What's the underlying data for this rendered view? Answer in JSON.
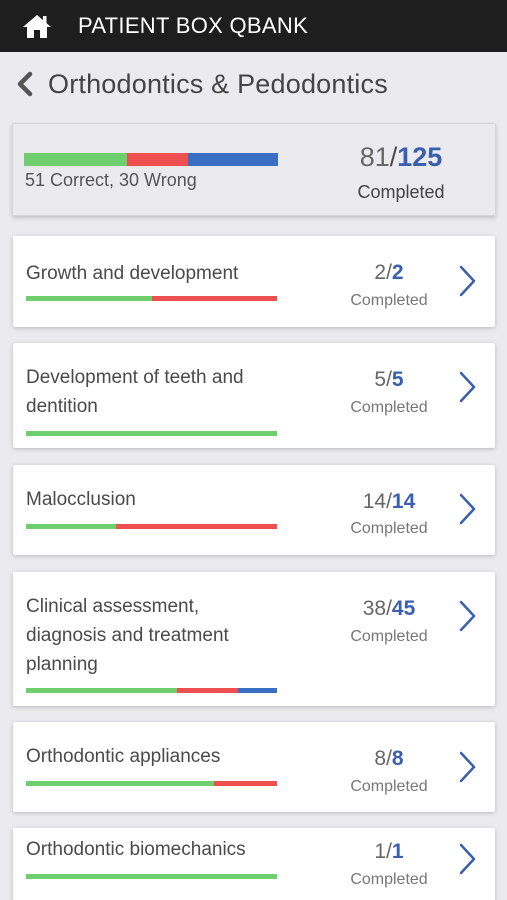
{
  "app": {
    "title": "PATIENT BOX QBANK"
  },
  "subject": {
    "title": "Orthodontics & Pedodontics"
  },
  "colors": {
    "correct": "#6fcf6f",
    "wrong": "#ee5050",
    "remaining": "#3a6ec4"
  },
  "summary": {
    "completed": "81",
    "total": "125",
    "correct": 51,
    "wrong": 30,
    "stats_label": "51 Correct, 30 Wrong",
    "completed_label": "Completed"
  },
  "topics": [
    {
      "name": "Growth and development",
      "completed": "2",
      "total": "2",
      "correct_fraction": 0.5,
      "wrong_fraction": 0.5,
      "completed_label": "Completed"
    },
    {
      "name": "Development of teeth and dentition",
      "completed": "5",
      "total": "5",
      "correct_fraction": 1.0,
      "wrong_fraction": 0.0,
      "completed_label": "Completed"
    },
    {
      "name": "Malocclusion",
      "completed": "14",
      "total": "14",
      "correct_fraction": 0.36,
      "wrong_fraction": 0.64,
      "completed_label": "Completed"
    },
    {
      "name": "Clinical assessment, diagnosis and treatment planning",
      "completed": "38",
      "total": "45",
      "correct_fraction": 0.6,
      "wrong_fraction": 0.245,
      "completed_label": "Completed"
    },
    {
      "name": "Orthodontic appliances",
      "completed": "8",
      "total": "8",
      "correct_fraction": 0.75,
      "wrong_fraction": 0.25,
      "completed_label": "Completed"
    },
    {
      "name": "Orthodontic biomechanics",
      "completed": "1",
      "total": "1",
      "correct_fraction": 1.0,
      "wrong_fraction": 0.0,
      "completed_label": "Completed"
    }
  ]
}
